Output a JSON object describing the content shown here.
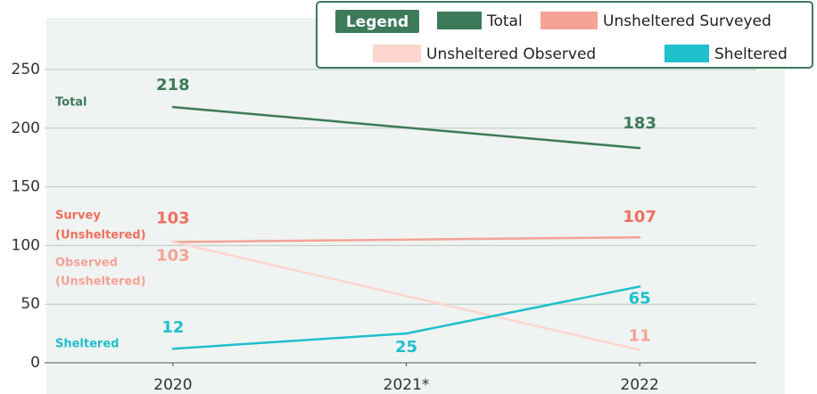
{
  "chart_data": {
    "type": "line",
    "legend_title": "Legend",
    "legend": "top-right",
    "xlim": [
      2019.45,
      2022.5
    ],
    "xticks": [
      2020,
      {
        "value": 2021,
        "label": "2021*"
      },
      2022
    ],
    "ylim": [
      0,
      250
    ],
    "yticks": [
      0,
      50,
      100,
      150,
      200,
      250
    ],
    "grid": true,
    "series": [
      {
        "name": "Total",
        "color": "#3d7a5a",
        "label_color": "#3d7a5a",
        "label_lines": [
          "Total"
        ],
        "x": [
          2020,
          2022
        ],
        "values": [
          218,
          183
        ]
      },
      {
        "name": "Unsheltered Surveyed",
        "color": "#f4a396",
        "label_color": "#ef6f5e",
        "label_lines": [
          "Survey",
          "(Unsheltered)"
        ],
        "x": [
          2020,
          2022
        ],
        "values": [
          103,
          107
        ]
      },
      {
        "name": "Unsheltered Observed",
        "color": "#fdd6cf",
        "label_color": "#f4a396",
        "label_lines": [
          "Observed",
          "(Unsheltered)"
        ],
        "x": [
          2020,
          2022
        ],
        "values": [
          103,
          11
        ]
      },
      {
        "name": "Sheltered",
        "color": "#1fbfcc",
        "label_color": "#1fbfcc",
        "label_lines": [
          "Sheltered"
        ],
        "x": [
          2020,
          2021,
          2022
        ],
        "values": [
          12,
          25,
          65
        ]
      }
    ]
  }
}
